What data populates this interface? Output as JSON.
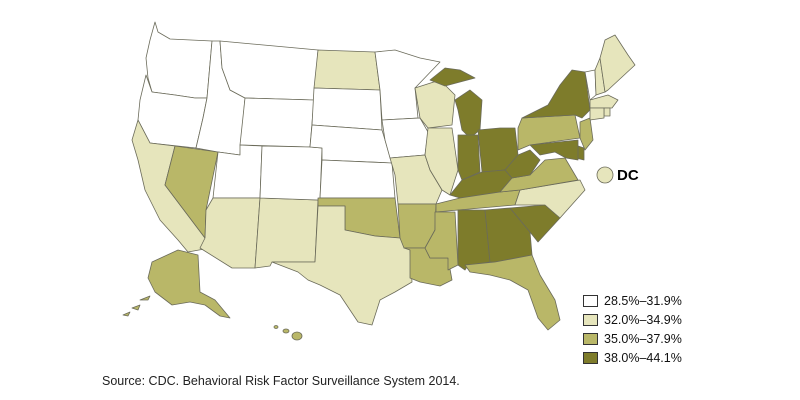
{
  "legend": {
    "items": [
      {
        "label": "28.5%–31.9%",
        "color": "#ffffff"
      },
      {
        "label": "32.0%–34.9%",
        "color": "#e6e5bc"
      },
      {
        "label": "35.0%–37.9%",
        "color": "#b9b768"
      },
      {
        "label": "38.0%–44.1%",
        "color": "#7e7c2b"
      }
    ]
  },
  "dc_label": "DC",
  "source": "Source: CDC. Behavioral Risk Factor Surveillance System 2014.",
  "states": {
    "WA": 0,
    "OR": 0,
    "CA": 1,
    "NV": 2,
    "ID": 0,
    "MT": 0,
    "WY": 0,
    "UT": 0,
    "AZ": 1,
    "NM": 1,
    "CO": 0,
    "ND": 1,
    "SD": 0,
    "NE": 0,
    "KS": 0,
    "OK": 2,
    "TX": 1,
    "MN": 0,
    "IA": 0,
    "MO": 1,
    "AR": 2,
    "LA": 2,
    "WI": 1,
    "IL": 1,
    "MI": 3,
    "IN": 3,
    "OH": 3,
    "KY": 3,
    "TN": 2,
    "MS": 2,
    "AL": 3,
    "GA": 3,
    "FL": 2,
    "SC": 3,
    "NC": 1,
    "VA": 2,
    "WV": 3,
    "PA": 2,
    "NY": 3,
    "VT": 0,
    "NH": 1,
    "ME": 1,
    "MA": 1,
    "CT": 1,
    "NJ": 2,
    "DE": 3,
    "MD": 3,
    "RI": 1,
    "AK": 2,
    "HI": 2,
    "DC": 1
  }
}
